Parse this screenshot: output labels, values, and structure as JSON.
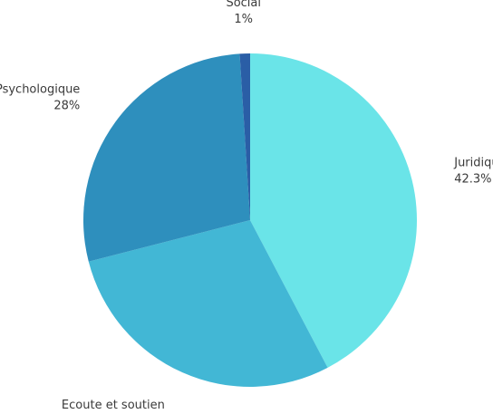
{
  "chart_data": {
    "type": "pie",
    "title": "",
    "start_angle_deg": 0,
    "direction": "clockwise",
    "slices": [
      {
        "label": "Juridique",
        "value": 42.3,
        "display": "42.3%",
        "color": "#6ae4e8"
      },
      {
        "label": "Ecoute et soutien",
        "value": 28.7,
        "display": "28.7%",
        "color": "#42b7d5"
      },
      {
        "label": "Psychologique",
        "value": 28,
        "display": "28%",
        "color": "#2e8fbd"
      },
      {
        "label": "Social",
        "value": 1,
        "display": "1%",
        "color": "#2a5ea6"
      }
    ]
  }
}
